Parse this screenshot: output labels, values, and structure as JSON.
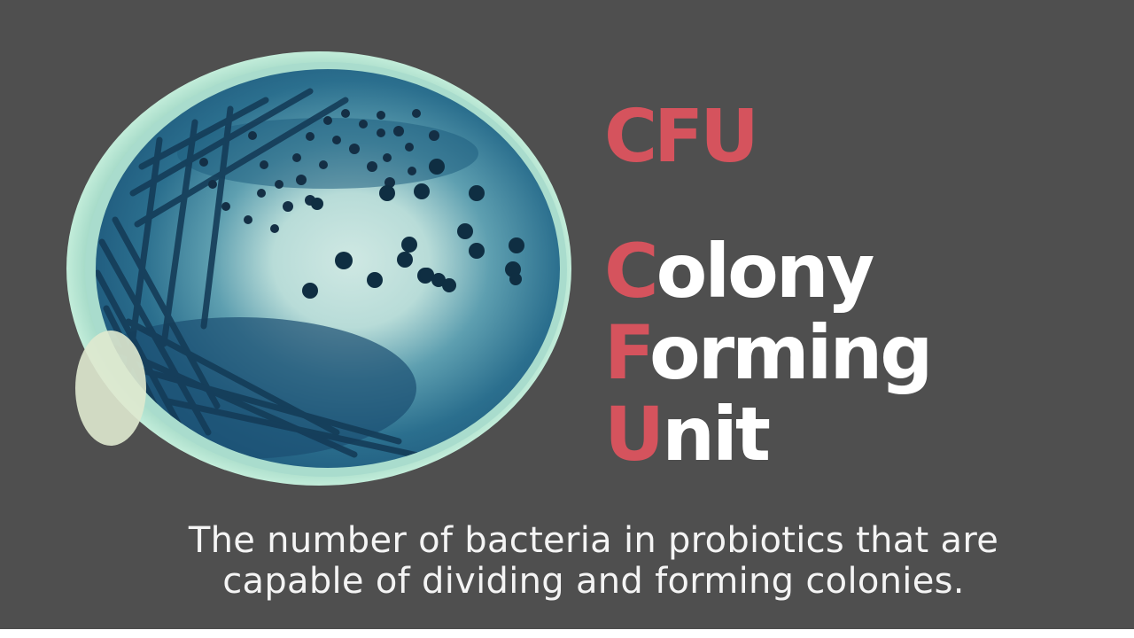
{
  "acronym": "CFU",
  "expansion": [
    {
      "initial": "C",
      "rest": "olony"
    },
    {
      "initial": "F",
      "rest": "orming"
    },
    {
      "initial": "U",
      "rest": "nit"
    }
  ],
  "description": {
    "line1": "The number of bacteria in probiotics that are",
    "line2": "capable of dividing and forming colonies."
  },
  "colors": {
    "background": "#4f4f4f",
    "accent": "#d5535d",
    "text": "#ffffff",
    "agar": "#1f5f7a",
    "colony": "#0f2e42"
  },
  "image": {
    "subject": "petri-dish-with-bacterial-colonies"
  }
}
